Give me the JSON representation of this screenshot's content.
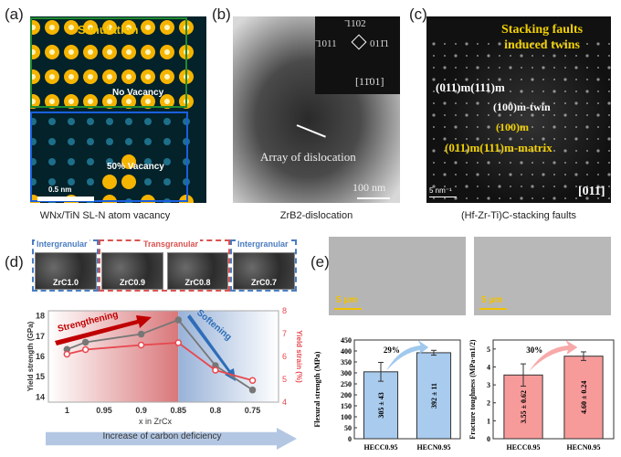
{
  "panel_a": {
    "label": "(a)",
    "simulation": "Simulation",
    "no_vacancy": "No Vacancy",
    "vacancy": "50% Vacancy",
    "scale": "0.5 nm",
    "caption": "WNx/TiN SL-N atom vacancy"
  },
  "panel_b": {
    "label": "(b)",
    "idx_top": "̄1102",
    "idx_left": "̄1011",
    "idx_right": "011̄1",
    "zone": "[11̄01]",
    "annotation": "Array of dislocation",
    "scale": "100 nm",
    "caption": "ZrB2-dislocation"
  },
  "panel_c": {
    "label": "(c)",
    "title_l1": "Stacking faults",
    "title_l2": "induced twins",
    "w1": "(011)m(111)m",
    "w2": "(100)m-twin",
    "y1": "(100)m",
    "y2": "(011)m(111)m-matrix",
    "scale": "5 nm⁻¹",
    "zone": "[011̄]",
    "caption": "(Hf-Zr-Ti)C-stacking faults"
  },
  "panel_d": {
    "label": "(d)",
    "inter1": "Intergranular",
    "trans": "Transgranular",
    "inter2": "Intergranular",
    "sem": [
      "ZrC1.0",
      "ZrC0.9",
      "ZrC0.8",
      "ZrC0.7"
    ],
    "strengthening": "Strengthening",
    "softening": "Softening",
    "arrow": "Increase of carbon deficiency"
  },
  "panel_e": {
    "label": "(e)",
    "scale1": "5 μm",
    "scale2": "5 μm",
    "pct1": "29%",
    "pct2": "30%"
  },
  "chart_data": [
    {
      "type": "line",
      "xlabel": "x in ZrCx",
      "ylabel": "Yield strength (GPa)",
      "y2label": "Yield strain (%)",
      "xticks": [
        "1",
        "0.95",
        "0.9",
        "0.85",
        "0.8",
        "0.75"
      ],
      "xlim": [
        1.025,
        0.715
      ],
      "ylim": [
        13.75,
        18.25
      ],
      "y2lim": [
        4,
        8
      ],
      "yticks": [
        14,
        15,
        16,
        17,
        18
      ],
      "y2ticks": [
        4,
        5,
        6,
        7,
        8
      ],
      "series": [
        {
          "name": "Yield strength",
          "axis": "left",
          "color": "#777777",
          "x": [
            1,
            0.975,
            0.9,
            0.85,
            0.8,
            0.75
          ],
          "y": [
            16.35,
            16.7,
            17.1,
            17.8,
            15.55,
            14.35
          ]
        },
        {
          "name": "Yield strain",
          "axis": "right",
          "color": "#e8474e",
          "x": [
            1,
            0.975,
            0.9,
            0.85,
            0.8,
            0.75
          ],
          "y": [
            6.1,
            6.3,
            6.5,
            6.6,
            5.4,
            4.95
          ]
        }
      ]
    },
    {
      "type": "bar",
      "ylabel": "Flexural strength (MPa)",
      "categories": [
        "HECC0.95",
        "HECN0.95"
      ],
      "values": [
        305,
        392
      ],
      "errors": [
        43,
        11
      ],
      "labels": [
        "305 ± 43",
        "392 ± 11"
      ],
      "ylim": [
        0,
        450
      ],
      "yticks": [
        0,
        50,
        100,
        150,
        200,
        250,
        300,
        350,
        400,
        450
      ],
      "color": "#a9cbee"
    },
    {
      "type": "bar",
      "ylabel": "Fracture toughness (MPa·m1/2)",
      "categories": [
        "HECC0.95",
        "HECN0.95"
      ],
      "values": [
        3.55,
        4.6
      ],
      "errors": [
        0.62,
        0.24
      ],
      "labels": [
        "3.55 ± 0.62",
        "4.60 ± 0.24"
      ],
      "ylim": [
        0,
        5.5
      ],
      "yticks": [
        0,
        1,
        2,
        3,
        4,
        5
      ],
      "color": "#f79a9a"
    }
  ]
}
